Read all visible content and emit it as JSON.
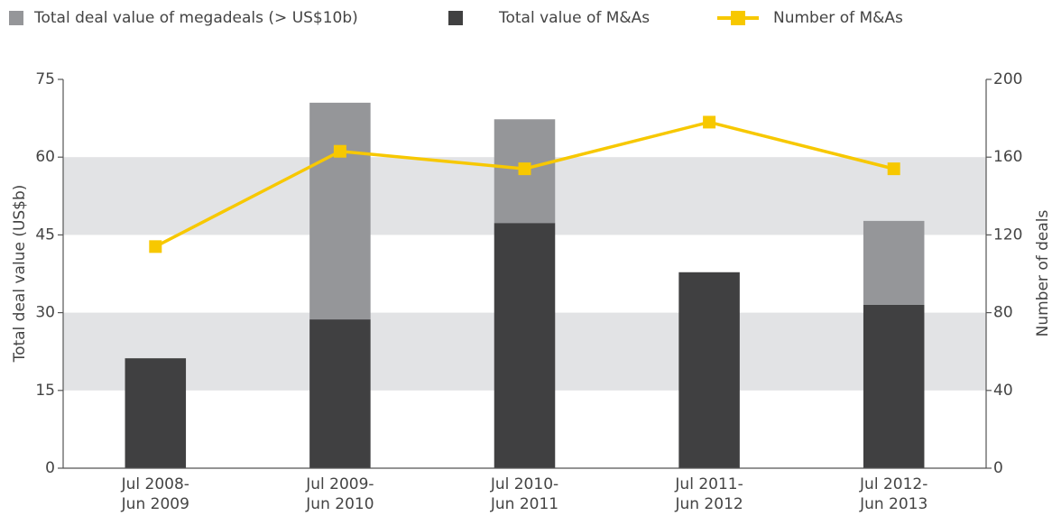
{
  "chart_data": {
    "type": "bar",
    "categories": [
      [
        "Jul 2008-",
        "Jun 2009"
      ],
      [
        "Jul 2009-",
        "Jun 2010"
      ],
      [
        "Jul 2010-",
        "Jun 2011"
      ],
      [
        "Jul 2011-",
        "Jun 2012"
      ],
      [
        "Jul 2012-",
        "Jun 2013"
      ]
    ],
    "series": [
      {
        "name": "Total deal value of megadeals (> US$10b)",
        "color": "#959699",
        "values": [
          null,
          41.8,
          20,
          null,
          16.2
        ]
      },
      {
        "name": "Total value of M&As",
        "color": "#404041",
        "values": [
          21.2,
          28.7,
          47.3,
          37.8,
          31.5
        ]
      },
      {
        "name": "Number of M&As",
        "color": "#f7c800",
        "type": "line",
        "axis": "y2",
        "values": [
          114,
          163,
          154,
          178,
          154
        ]
      }
    ],
    "ylabel": "Total deal value (US$b)",
    "y2label": "Number of deals",
    "ylim": [
      0,
      75
    ],
    "yticks": [
      0,
      15,
      30,
      45,
      60,
      75
    ],
    "y2lim": [
      0,
      200
    ],
    "y2ticks": [
      0,
      40,
      80,
      120,
      160,
      200
    ],
    "legend": "top",
    "grid": "bands",
    "band_color": "#e2e3e5"
  }
}
